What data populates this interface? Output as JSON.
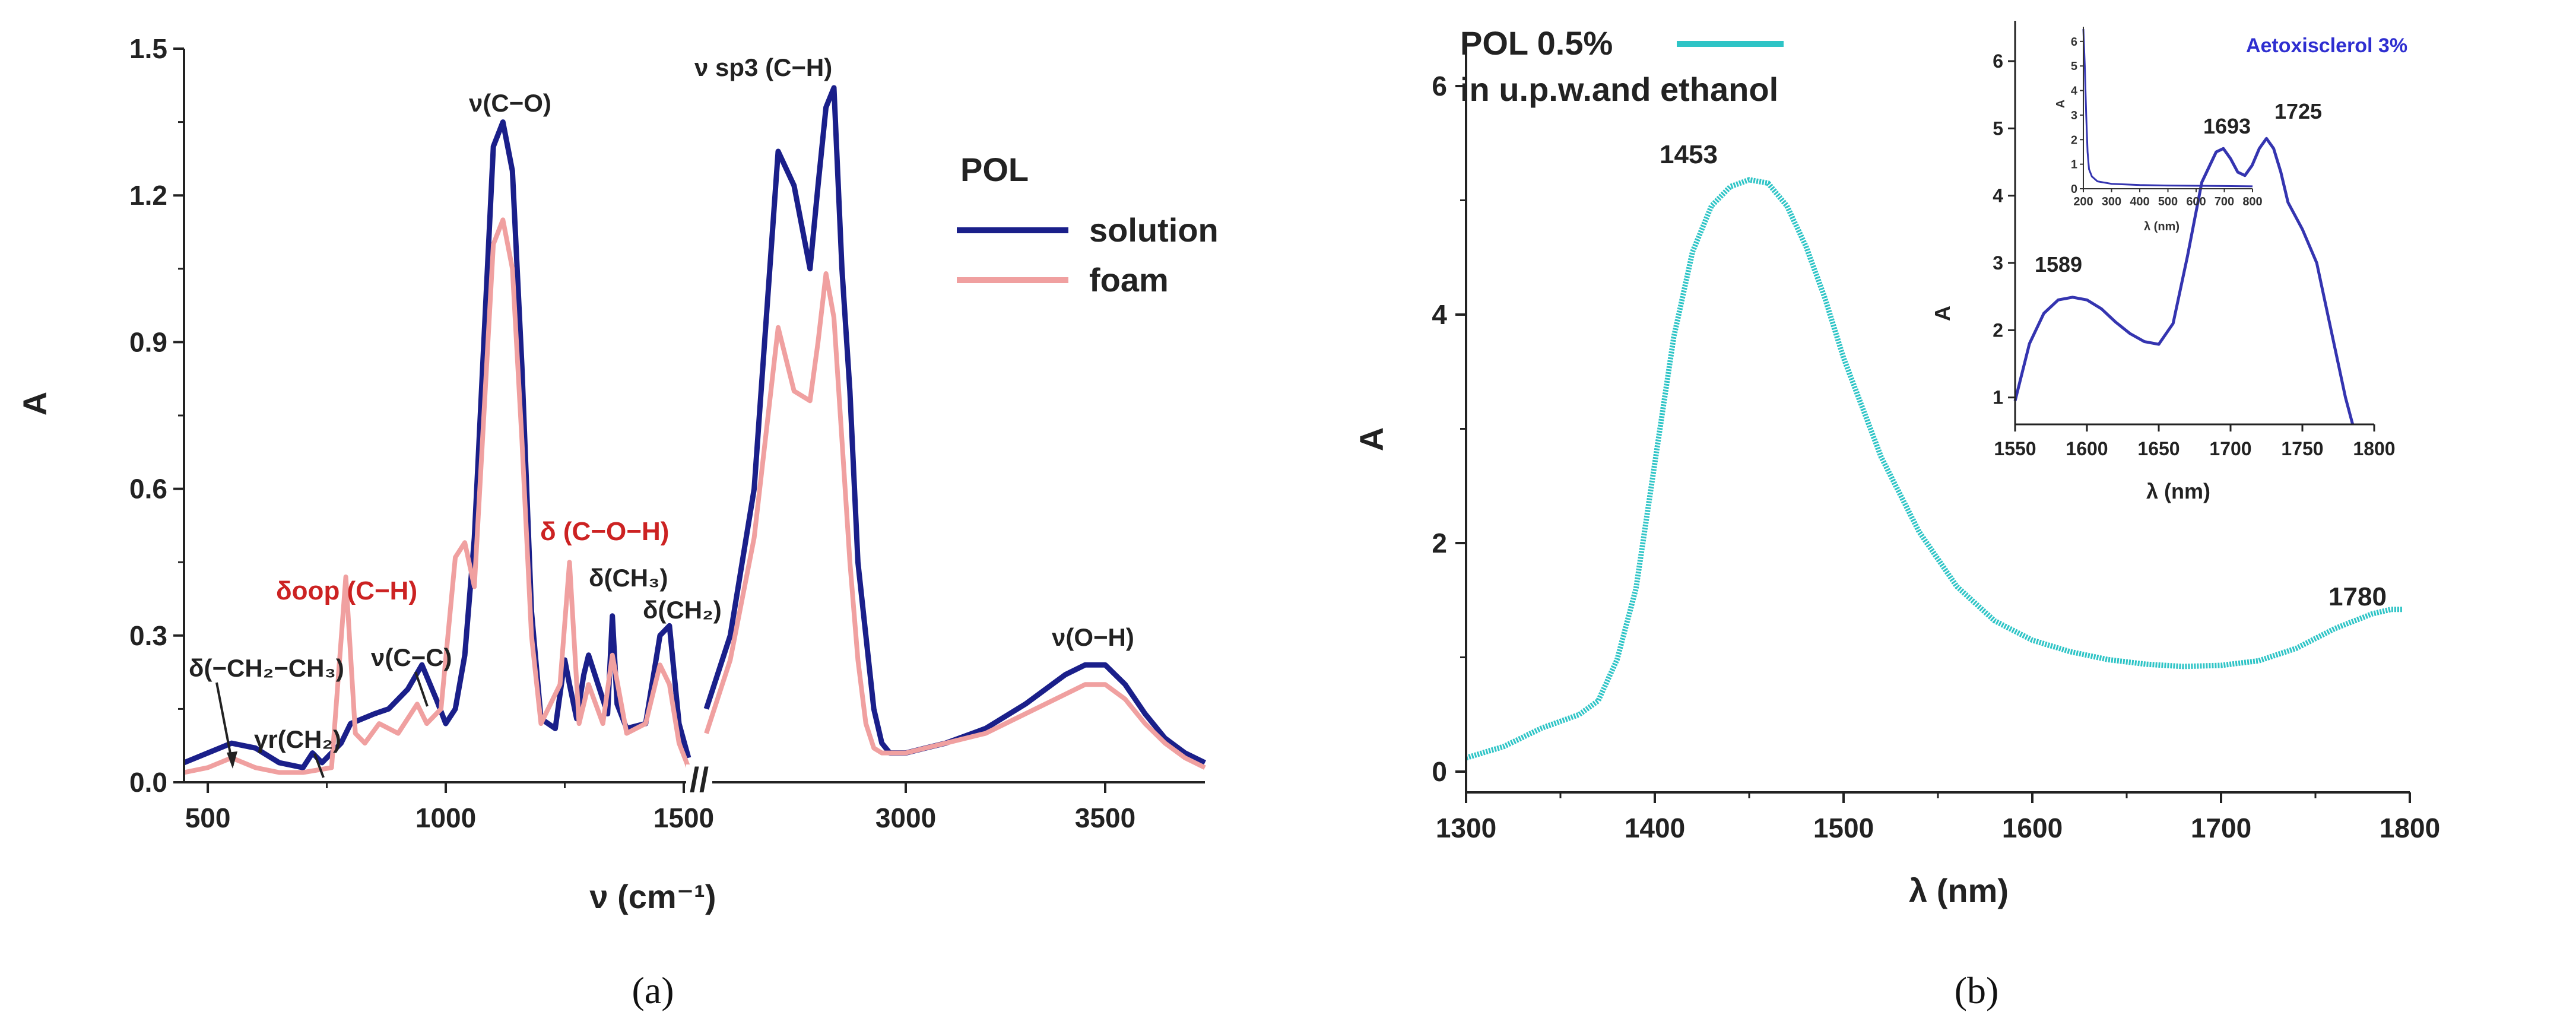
{
  "chart_data": [
    {
      "type": "line",
      "panel": "(a)",
      "xlabel": "ν (cm⁻¹)",
      "ylabel": "A",
      "ylim": [
        0,
        1.5
      ],
      "yticks": [
        "0.0",
        "0.3",
        "0.6",
        "0.9",
        "1.2",
        "1.5"
      ],
      "xticks": [
        "500",
        "1000",
        "1500",
        "3000",
        "3500"
      ],
      "axis_break": "//",
      "legend": {
        "title": "POL",
        "entries": [
          "solution",
          "foam"
        ]
      },
      "colors": {
        "solution": "#1a1f8a",
        "foam": "#f0a0a0",
        "red_annotation": "#cc2222"
      },
      "series": [
        {
          "name": "solution",
          "segments": [
            {
              "x": [
                450,
                500,
                550,
                600,
                650,
                700,
                720,
                740,
                780,
                800,
                850,
                880,
                920,
                950,
                980,
                1000,
                1020,
                1040,
                1060,
                1080,
                1100,
                1120,
                1140,
                1160,
                1180,
                1200,
                1230,
                1250,
                1260,
                1275,
                1290,
                1300,
                1320,
                1340,
                1350,
                1360,
                1380,
                1420,
                1450,
                1470,
                1490,
                1510
              ],
              "y": [
                0.04,
                0.06,
                0.08,
                0.07,
                0.04,
                0.03,
                0.06,
                0.04,
                0.08,
                0.12,
                0.14,
                0.15,
                0.19,
                0.24,
                0.17,
                0.12,
                0.15,
                0.26,
                0.5,
                0.9,
                1.3,
                1.35,
                1.25,
                0.85,
                0.35,
                0.13,
                0.11,
                0.25,
                0.2,
                0.13,
                0.22,
                0.26,
                0.2,
                0.14,
                0.34,
                0.16,
                0.11,
                0.12,
                0.3,
                0.32,
                0.12,
                0.05
              ]
            },
            {
              "x": [
                2500,
                2560,
                2620,
                2680,
                2720,
                2760,
                2780,
                2800,
                2820,
                2840,
                2860,
                2880,
                2900,
                2920,
                2940,
                2960,
                2980,
                3000,
                3050,
                3100,
                3200,
                3300,
                3400,
                3450,
                3500,
                3550,
                3600,
                3650,
                3700,
                3750
              ],
              "y": [
                0.15,
                0.3,
                0.6,
                1.29,
                1.22,
                1.05,
                1.22,
                1.38,
                1.42,
                1.05,
                0.8,
                0.45,
                0.3,
                0.15,
                0.08,
                0.06,
                0.06,
                0.06,
                0.07,
                0.08,
                0.11,
                0.16,
                0.22,
                0.24,
                0.24,
                0.2,
                0.14,
                0.09,
                0.06,
                0.04
              ]
            }
          ]
        },
        {
          "name": "foam",
          "segments": [
            {
              "x": [
                450,
                500,
                550,
                600,
                650,
                700,
                760,
                790,
                810,
                830,
                860,
                900,
                940,
                960,
                990,
                1020,
                1040,
                1060,
                1080,
                1100,
                1120,
                1140,
                1160,
                1180,
                1200,
                1240,
                1260,
                1280,
                1300,
                1330,
                1350,
                1380,
                1420,
                1450,
                1470,
                1490,
                1510
              ],
              "y": [
                0.02,
                0.03,
                0.05,
                0.03,
                0.02,
                0.02,
                0.03,
                0.42,
                0.1,
                0.08,
                0.12,
                0.1,
                0.16,
                0.12,
                0.15,
                0.46,
                0.49,
                0.4,
                0.75,
                1.1,
                1.15,
                1.05,
                0.7,
                0.3,
                0.12,
                0.2,
                0.45,
                0.12,
                0.2,
                0.12,
                0.26,
                0.1,
                0.12,
                0.24,
                0.2,
                0.08,
                0.03
              ]
            },
            {
              "x": [
                2500,
                2560,
                2620,
                2680,
                2720,
                2760,
                2780,
                2800,
                2820,
                2840,
                2860,
                2880,
                2900,
                2920,
                2940,
                2960,
                2980,
                3000,
                3050,
                3100,
                3200,
                3300,
                3400,
                3450,
                3500,
                3550,
                3600,
                3650,
                3700,
                3750
              ],
              "y": [
                0.1,
                0.25,
                0.5,
                0.93,
                0.8,
                0.78,
                0.9,
                1.04,
                0.95,
                0.7,
                0.45,
                0.25,
                0.12,
                0.07,
                0.06,
                0.06,
                0.06,
                0.06,
                0.07,
                0.08,
                0.1,
                0.14,
                0.18,
                0.2,
                0.2,
                0.17,
                0.12,
                0.08,
                0.05,
                0.03
              ]
            }
          ]
        }
      ],
      "annotations": [
        {
          "text": "δ(−CH₂−CH₃)"
        },
        {
          "text": "γr(CH₂)"
        },
        {
          "text": "δoop (C−H)"
        },
        {
          "text": "ν(C−C)"
        },
        {
          "text": "ν(C−O)"
        },
        {
          "text": "δ (C−O−H)"
        },
        {
          "text": "δ(CH₃)"
        },
        {
          "text": "δ(CH₂)"
        },
        {
          "text": "ν sp3 (C−H)"
        },
        {
          "text": "ν(O−H)"
        }
      ],
      "caption": "(a)"
    },
    {
      "type": "line",
      "panel": "(b)",
      "xlabel": "λ (nm)",
      "ylabel": "A",
      "xlim": [
        1300,
        1800
      ],
      "ylim": [
        0,
        6
      ],
      "xticks": [
        "1300",
        "1400",
        "1500",
        "1600",
        "1700",
        "1800"
      ],
      "yticks": [
        "0",
        "2",
        "4",
        "6"
      ],
      "legend": {
        "entries": [
          "POL 0.5%",
          "in u.p.w.and ethanol"
        ]
      },
      "colors": {
        "main": "#2ec4c6"
      },
      "series": [
        {
          "name": "POL 0.5% in u.p.w.and ethanol",
          "x": [
            1300,
            1320,
            1340,
            1360,
            1370,
            1380,
            1390,
            1400,
            1410,
            1420,
            1430,
            1440,
            1450,
            1460,
            1470,
            1480,
            1490,
            1500,
            1520,
            1540,
            1560,
            1580,
            1600,
            1620,
            1640,
            1660,
            1680,
            1700,
            1720,
            1740,
            1760,
            1780,
            1790,
            1796
          ],
          "y": [
            0.12,
            0.22,
            0.38,
            0.5,
            0.62,
            0.98,
            1.6,
            2.7,
            3.8,
            4.55,
            4.95,
            5.12,
            5.18,
            5.15,
            4.95,
            4.6,
            4.15,
            3.62,
            2.75,
            2.1,
            1.62,
            1.32,
            1.15,
            1.05,
            0.98,
            0.94,
            0.92,
            0.93,
            0.97,
            1.08,
            1.25,
            1.38,
            1.42,
            1.42
          ]
        }
      ],
      "peak_labels": [
        "1453",
        "1780"
      ],
      "caption": "(b)"
    },
    {
      "type": "line",
      "panel": "(b) inset",
      "title": "Aetoxisclerol 3%",
      "xlabel": "λ (nm)",
      "ylabel": "A",
      "xlim": [
        1550,
        1800
      ],
      "ylim": [
        0.6,
        6.6
      ],
      "xticks": [
        "1550",
        "1600",
        "1650",
        "1700",
        "1750",
        "1800"
      ],
      "yticks": [
        "1",
        "2",
        "3",
        "4",
        "5",
        "6"
      ],
      "colors": {
        "main": "#3434b0",
        "title": "#2e2ed0"
      },
      "series": [
        {
          "name": "Aetoxisclerol 3%",
          "x": [
            1550,
            1560,
            1570,
            1580,
            1590,
            1600,
            1610,
            1620,
            1630,
            1640,
            1650,
            1660,
            1670,
            1680,
            1690,
            1695,
            1700,
            1705,
            1710,
            1715,
            1720,
            1725,
            1730,
            1735,
            1740,
            1750,
            1760,
            1770,
            1780,
            1785
          ],
          "y": [
            0.95,
            1.8,
            2.25,
            2.45,
            2.49,
            2.45,
            2.32,
            2.12,
            1.95,
            1.83,
            1.79,
            2.1,
            3.1,
            4.2,
            4.65,
            4.7,
            4.55,
            4.35,
            4.3,
            4.45,
            4.7,
            4.85,
            4.7,
            4.35,
            3.9,
            3.5,
            3.0,
            2.0,
            1.0,
            0.6
          ]
        }
      ],
      "peak_labels": [
        "1589",
        "1693",
        "1725"
      ],
      "subinset": {
        "xlabel": "λ (nm)",
        "ylabel": "A",
        "xticks": [
          "200",
          "300",
          "400",
          "500",
          "600",
          "700",
          "800"
        ],
        "yticks": [
          "0",
          "1",
          "2",
          "3",
          "4",
          "5",
          "6"
        ],
        "x": [
          200,
          205,
          210,
          215,
          220,
          230,
          250,
          300,
          400,
          500,
          600,
          700,
          800
        ],
        "y": [
          6.5,
          5.0,
          3.0,
          1.5,
          0.8,
          0.5,
          0.3,
          0.2,
          0.15,
          0.13,
          0.12,
          0.11,
          0.1
        ]
      }
    }
  ]
}
